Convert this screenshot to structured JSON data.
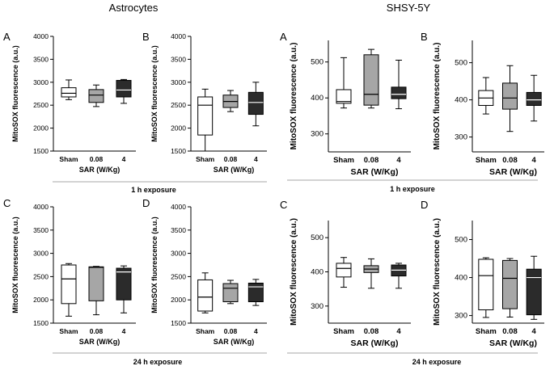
{
  "headers": {
    "left": "Astrocytes",
    "right": "SHSY-5Y"
  },
  "exposure": {
    "one_h": "1 h exposure",
    "twentyfour_h": "24 h exposure"
  },
  "colors": {
    "white": "#ffffff",
    "gray": "#a6a6a6",
    "dark": "#2b2b2b",
    "stroke": "#000000",
    "rule": "#8a8a8a"
  },
  "chart_data": [
    {
      "type": "box",
      "panel_label": "A",
      "group": "Astrocytes",
      "exposure": "1 h exposure",
      "ylabel": "MitoSOX fluorescence (a.u.)",
      "xlabel": "SAR (W/Kg)",
      "ylim": [
        1500,
        4000
      ],
      "yticks": [
        1500,
        2000,
        2500,
        3000,
        3500,
        4000
      ],
      "categories": [
        "Sham",
        "0.08",
        "4"
      ],
      "boxes": [
        {
          "min": 2620,
          "q1": 2680,
          "median": 2760,
          "q3": 2880,
          "max": 3050
        },
        {
          "min": 2470,
          "q1": 2560,
          "median": 2720,
          "q3": 2840,
          "max": 2940
        },
        {
          "min": 2540,
          "q1": 2680,
          "median": 2830,
          "q3": 3040,
          "max": 3060
        }
      ]
    },
    {
      "type": "box",
      "panel_label": "B",
      "group": "Astrocytes",
      "exposure": "1 h exposure",
      "ylabel": "MitoSOX fluorescence (a.u.)",
      "xlabel": "SAR (W/Kg)",
      "ylim": [
        1500,
        4000
      ],
      "yticks": [
        1500,
        2000,
        2500,
        3000,
        3500,
        4000
      ],
      "categories": [
        "Sham",
        "0.08",
        "4"
      ],
      "boxes": [
        {
          "min": 1500,
          "q1": 1850,
          "median": 2500,
          "q3": 2680,
          "max": 2850
        },
        {
          "min": 2360,
          "q1": 2450,
          "median": 2580,
          "q3": 2720,
          "max": 2820
        },
        {
          "min": 2050,
          "q1": 2300,
          "median": 2560,
          "q3": 2780,
          "max": 3000
        }
      ]
    },
    {
      "type": "box",
      "panel_label": "A",
      "group": "SHSY-5Y",
      "exposure": "1 h exposure",
      "ylabel": "MitoSOX fluorescence (a.u.)",
      "xlabel": "SAR (W/Kg)",
      "ylim": [
        250,
        560
      ],
      "yticks": [
        300,
        400,
        500
      ],
      "categories": [
        "Sham",
        "0.08",
        "4"
      ],
      "boxes": [
        {
          "min": 372,
          "q1": 385,
          "median": 390,
          "q3": 423,
          "max": 512
        },
        {
          "min": 372,
          "q1": 380,
          "median": 410,
          "q3": 520,
          "max": 535
        },
        {
          "min": 370,
          "q1": 398,
          "median": 410,
          "q3": 430,
          "max": 505
        }
      ]
    },
    {
      "type": "box",
      "panel_label": "B",
      "group": "SHSY-5Y",
      "exposure": "1 h exposure",
      "ylabel": "MitoSOX fluorescence (a.u.)",
      "xlabel": "SAR (W/Kg)",
      "ylim": [
        260,
        560
      ],
      "yticks": [
        300,
        400,
        500
      ],
      "categories": [
        "Sham",
        "0.08",
        "4"
      ],
      "boxes": [
        {
          "min": 362,
          "q1": 385,
          "median": 405,
          "q3": 425,
          "max": 460
        },
        {
          "min": 315,
          "q1": 375,
          "median": 405,
          "q3": 445,
          "max": 492
        },
        {
          "min": 343,
          "q1": 385,
          "median": 400,
          "q3": 420,
          "max": 466
        }
      ]
    },
    {
      "type": "box",
      "panel_label": "C",
      "group": "Astrocytes",
      "exposure": "24 h exposure",
      "ylabel": "MitoSOX fluorescence (a.u.)",
      "xlabel": "SAR (W/Kg)",
      "ylim": [
        1500,
        4000
      ],
      "yticks": [
        1500,
        2000,
        2500,
        3000,
        3500,
        4000
      ],
      "categories": [
        "Sham",
        "0.08",
        "4"
      ],
      "boxes": [
        {
          "min": 1650,
          "q1": 1920,
          "median": 2450,
          "q3": 2750,
          "max": 2780
        },
        {
          "min": 1680,
          "q1": 1980,
          "median": 2700,
          "q3": 2710,
          "max": 2720
        },
        {
          "min": 1720,
          "q1": 2000,
          "median": 2600,
          "q3": 2680,
          "max": 2730
        }
      ]
    },
    {
      "type": "box",
      "panel_label": "D",
      "group": "Astrocytes",
      "exposure": "24 h exposure",
      "ylabel": "MitoSOX fluorescence (a.u.)",
      "xlabel": "SAR (W/Kg)",
      "ylim": [
        1500,
        4000
      ],
      "yticks": [
        1500,
        2000,
        2500,
        3000,
        3500,
        4000
      ],
      "categories": [
        "Sham",
        "0.08",
        "4"
      ],
      "boxes": [
        {
          "min": 1720,
          "q1": 1760,
          "median": 2060,
          "q3": 2430,
          "max": 2580
        },
        {
          "min": 1920,
          "q1": 1960,
          "median": 2250,
          "q3": 2350,
          "max": 2420
        },
        {
          "min": 1880,
          "q1": 1960,
          "median": 2280,
          "q3": 2360,
          "max": 2440
        }
      ]
    },
    {
      "type": "box",
      "panel_label": "C",
      "group": "SHSY-5Y",
      "exposure": "24 h exposure",
      "ylabel": "MitoSOX fluorescence (a.u.)",
      "xlabel": "SAR (W/Kg)",
      "ylim": [
        250,
        550
      ],
      "yticks": [
        300,
        400,
        500
      ],
      "categories": [
        "Sham",
        "0.08",
        "4"
      ],
      "boxes": [
        {
          "min": 355,
          "q1": 385,
          "median": 410,
          "q3": 425,
          "max": 442
        },
        {
          "min": 352,
          "q1": 398,
          "median": 408,
          "q3": 418,
          "max": 438
        },
        {
          "min": 352,
          "q1": 388,
          "median": 405,
          "q3": 420,
          "max": 425
        }
      ]
    },
    {
      "type": "box",
      "panel_label": "D",
      "group": "SHSY-5Y",
      "exposure": "24 h exposure",
      "ylabel": "MitoSOX fluorescence (a.u.)",
      "xlabel": "SAR (W/Kg)",
      "ylim": [
        280,
        550
      ],
      "yticks": [
        300,
        400,
        500
      ],
      "categories": [
        "Sham",
        "0.08",
        "4"
      ],
      "boxes": [
        {
          "min": 295,
          "q1": 315,
          "median": 405,
          "q3": 448,
          "max": 452
        },
        {
          "min": 296,
          "q1": 318,
          "median": 398,
          "q3": 445,
          "max": 450
        },
        {
          "min": 290,
          "q1": 302,
          "median": 400,
          "q3": 422,
          "max": 456
        }
      ]
    }
  ]
}
